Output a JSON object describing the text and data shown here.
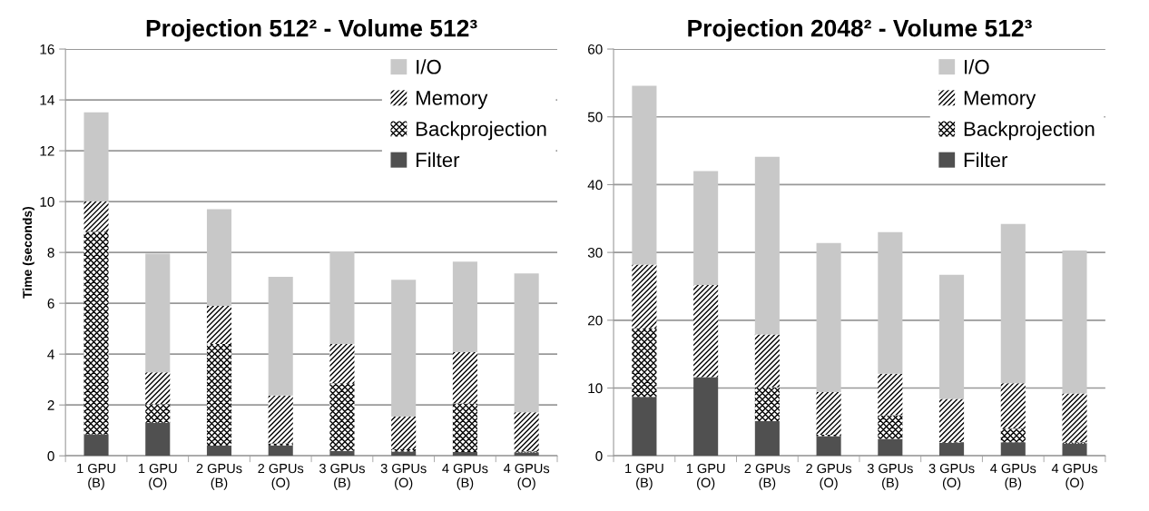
{
  "chart_data": [
    {
      "type": "bar",
      "stacked": true,
      "title": "Projection 512² - Volume 512³",
      "ylabel": "Time (seconds)",
      "categories": [
        "1 GPU\n(B)",
        "1 GPU\n(O)",
        "2 GPUs\n(B)",
        "2 GPUs\n(O)",
        "3 GPUs\n(B)",
        "3 GPUs\n(O)",
        "4 GPUs\n(B)",
        "4 GPUs\n(O)"
      ],
      "series": [
        {
          "name": "Filter",
          "color": "#505050",
          "values": [
            0.85,
            1.3,
            0.4,
            0.41,
            0.19,
            0.17,
            0.15,
            0.13
          ]
        },
        {
          "name": "Backprojection",
          "color": "#ffffff",
          "values": [
            7.97,
            0.73,
            4.0,
            0.08,
            2.66,
            0.09,
            1.91,
            0.05
          ]
        },
        {
          "name": "Memory",
          "color": "#ffffff",
          "values": [
            1.19,
            1.25,
            1.5,
            1.88,
            1.55,
            1.28,
            2.02,
            1.53
          ]
        },
        {
          "name": "I/O",
          "color": "#c8c8c8",
          "values": [
            3.5,
            4.67,
            3.8,
            4.67,
            3.64,
            5.38,
            3.56,
            5.46
          ]
        }
      ],
      "ylim": [
        0,
        16
      ],
      "yticks": [
        0,
        2,
        4,
        6,
        8,
        10,
        12,
        14,
        16
      ],
      "grid": "y",
      "legend": "top right"
    },
    {
      "type": "bar",
      "stacked": true,
      "title": "Projection 2048² - Volume 512³",
      "categories": [
        "1 GPU\n(B)",
        "1 GPU\n(O)",
        "2 GPUs\n(B)",
        "2 GPUs\n(O)",
        "3 GPUs\n(B)",
        "3 GPUs\n(O)",
        "4 GPUs\n(B)",
        "4 GPUs\n(O)"
      ],
      "series": [
        {
          "name": "Filter",
          "color": "#505050",
          "values": [
            8.7,
            11.6,
            5.1,
            2.9,
            2.5,
            1.9,
            2.0,
            1.8
          ]
        },
        {
          "name": "Backprojection",
          "color": "#ffffff",
          "values": [
            10.1,
            0,
            5.0,
            0.2,
            3.5,
            0.1,
            2.0,
            0.2
          ]
        },
        {
          "name": "Memory",
          "color": "#ffffff",
          "values": [
            9.4,
            13.6,
            7.8,
            6.3,
            6.1,
            6.4,
            6.7,
            7.2
          ]
        },
        {
          "name": "I/O",
          "color": "#c8c8c8",
          "values": [
            26.4,
            16.8,
            26.2,
            22.0,
            20.9,
            18.3,
            23.5,
            21.1
          ]
        }
      ],
      "ylim": [
        0,
        60
      ],
      "yticks": [
        0,
        10,
        20,
        30,
        40,
        50,
        60
      ],
      "grid": "y",
      "legend": "top right"
    }
  ]
}
